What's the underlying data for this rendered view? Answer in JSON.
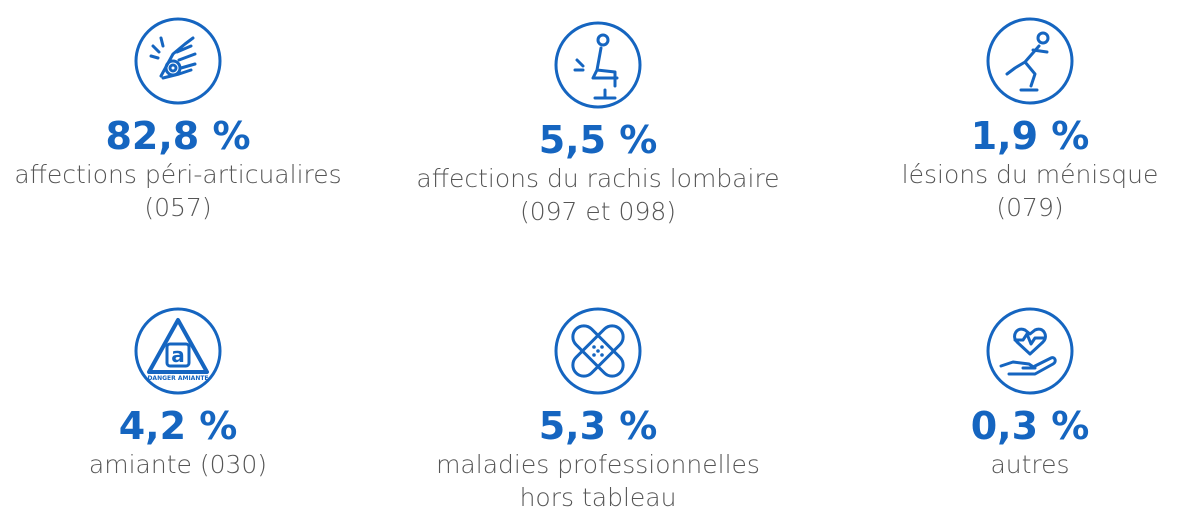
{
  "items": [
    {
      "value": "82,8 %",
      "lines": [
        "affections péri-articualires",
        "(057)"
      ]
    },
    {
      "value": "5,5 %",
      "lines": [
        "affections du rachis lombaire",
        "(097 et 098)"
      ]
    },
    {
      "value": "1,9 %",
      "lines": [
        "lésions du ménisque",
        "(079)"
      ]
    },
    {
      "value": "4,2 %",
      "lines": [
        "amiante (030)"
      ],
      "icon_text": "DANGER AMIANTE"
    },
    {
      "value": "5,3 %",
      "lines": [
        "maladies professionnelles",
        "hors tableau"
      ]
    },
    {
      "value": "0,3 %",
      "lines": [
        "autres"
      ]
    }
  ]
}
